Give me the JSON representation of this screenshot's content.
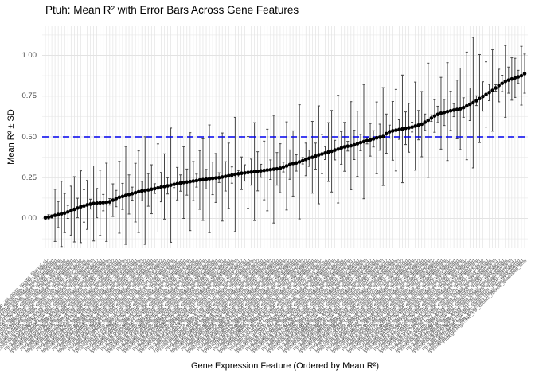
{
  "figure": {
    "title": "Ptuh: Mean R² with Error Bars Across Gene Features",
    "x_axis_title": "Gene Expression Feature (Ordered by Mean R²)",
    "y_axis_title": "Mean R² ± SD"
  },
  "chart_data": {
    "type": "scatter",
    "title": "Ptuh: Mean R² with Error Bars Across Gene Features",
    "xlabel": "Gene Expression Feature (Ordered by Mean R²)",
    "ylabel": "Mean R² ± SD",
    "ylim": [
      -0.18,
      1.18
    ],
    "grid": {
      "major_y": [
        0,
        0.25,
        0.5,
        0.75,
        1.0
      ],
      "minor_y": [
        -0.125,
        0.125,
        0.375,
        0.625,
        0.875,
        1.125
      ],
      "vertical_per_category": true
    },
    "y_ticks": [
      {
        "label": "0.00",
        "value": 0
      },
      {
        "label": "0.25",
        "value": 0.25
      },
      {
        "label": "0.50",
        "value": 0.5
      },
      {
        "label": "0.75",
        "value": 0.75
      },
      {
        "label": "1.00",
        "value": 1.0
      }
    ],
    "reference_line": {
      "value": 0.5,
      "style": "dashed",
      "color": "#0000ee"
    },
    "n_features": 150,
    "means": [
      0.005,
      0.008,
      0.012,
      0.019,
      0.024,
      0.028,
      0.033,
      0.04,
      0.048,
      0.056,
      0.064,
      0.072,
      0.077,
      0.083,
      0.088,
      0.092,
      0.094,
      0.096,
      0.097,
      0.099,
      0.102,
      0.112,
      0.122,
      0.13,
      0.135,
      0.141,
      0.147,
      0.152,
      0.158,
      0.164,
      0.168,
      0.171,
      0.175,
      0.179,
      0.183,
      0.187,
      0.192,
      0.196,
      0.2,
      0.204,
      0.209,
      0.213,
      0.217,
      0.22,
      0.223,
      0.226,
      0.229,
      0.232,
      0.236,
      0.238,
      0.241,
      0.243,
      0.246,
      0.248,
      0.25,
      0.254,
      0.258,
      0.262,
      0.266,
      0.27,
      0.274,
      0.277,
      0.279,
      0.282,
      0.284,
      0.287,
      0.289,
      0.292,
      0.294,
      0.297,
      0.299,
      0.302,
      0.304,
      0.308,
      0.315,
      0.322,
      0.33,
      0.337,
      0.34,
      0.347,
      0.354,
      0.362,
      0.369,
      0.375,
      0.382,
      0.39,
      0.395,
      0.401,
      0.407,
      0.412,
      0.419,
      0.425,
      0.432,
      0.439,
      0.443,
      0.446,
      0.451,
      0.458,
      0.465,
      0.471,
      0.477,
      0.482,
      0.488,
      0.494,
      0.498,
      0.502,
      0.52,
      0.532,
      0.537,
      0.541,
      0.545,
      0.549,
      0.553,
      0.556,
      0.56,
      0.566,
      0.572,
      0.578,
      0.59,
      0.602,
      0.615,
      0.628,
      0.638,
      0.645,
      0.65,
      0.655,
      0.66,
      0.664,
      0.668,
      0.672,
      0.68,
      0.69,
      0.7,
      0.71,
      0.722,
      0.735,
      0.748,
      0.76,
      0.772,
      0.785,
      0.8,
      0.815,
      0.828,
      0.84,
      0.848,
      0.855,
      0.862,
      0.868,
      0.875,
      0.888
    ],
    "sds": [
      0.01,
      0.015,
      0.01,
      0.16,
      0.08,
      0.2,
      0.12,
      0.04,
      0.15,
      0.2,
      0.06,
      0.22,
      0.1,
      0.15,
      0.03,
      0.23,
      0.09,
      0.2,
      0.05,
      0.24,
      0.02,
      0.1,
      0.05,
      0.22,
      0.08,
      0.3,
      0.12,
      0.04,
      0.18,
      0.25,
      0.06,
      0.33,
      0.1,
      0.15,
      0.03,
      0.27,
      0.09,
      0.2,
      0.05,
      0.35,
      0.02,
      0.1,
      0.05,
      0.22,
      0.08,
      0.3,
      0.12,
      0.04,
      0.18,
      0.25,
      0.06,
      0.33,
      0.1,
      0.15,
      0.03,
      0.27,
      0.09,
      0.2,
      0.05,
      0.35,
      0.02,
      0.1,
      0.05,
      0.22,
      0.08,
      0.3,
      0.12,
      0.04,
      0.18,
      0.25,
      0.06,
      0.33,
      0.1,
      0.15,
      0.03,
      0.27,
      0.09,
      0.2,
      0.05,
      0.35,
      0.02,
      0.1,
      0.05,
      0.22,
      0.08,
      0.3,
      0.12,
      0.04,
      0.18,
      0.25,
      0.06,
      0.33,
      0.1,
      0.15,
      0.03,
      0.27,
      0.09,
      0.2,
      0.05,
      0.35,
      0.02,
      0.1,
      0.05,
      0.22,
      0.08,
      0.3,
      0.12,
      0.04,
      0.18,
      0.25,
      0.06,
      0.33,
      0.1,
      0.15,
      0.03,
      0.27,
      0.09,
      0.2,
      0.05,
      0.35,
      0.02,
      0.1,
      0.05,
      0.22,
      0.08,
      0.3,
      0.12,
      0.04,
      0.18,
      0.25,
      0.06,
      0.33,
      0.1,
      0.4,
      0.03,
      0.27,
      0.09,
      0.2,
      0.05,
      0.25,
      0.02,
      0.1,
      0.05,
      0.22,
      0.08,
      0.13,
      0.12,
      0.04,
      0.18,
      0.12
    ],
    "x_tick_labels": {
      "legible": false,
      "note": "150 rotated gene-feature identifiers, too small to read in source image",
      "pattern_prefix": "Ptuh.gene.g",
      "pattern_suffixes": [
        "_expression_vst_norm_counts_filtered_r1",
        "_scaled_expression_matrix_vst_batch2",
        "_log2_tpm_mean_rep1_rep2_rep3_filtered",
        "_rlog_expression_matrix_min10_annotated",
        "_vst_counts_filtered_annotated_final"
      ]
    },
    "colors": {
      "point": "#000000",
      "errorbar": "#454545",
      "grid_major": "#e3e3e3",
      "grid_minor": "#f1f1f1",
      "ref_line": "#0000ee",
      "axis_text": "#4d4d4d",
      "title_text": "#000000"
    }
  }
}
